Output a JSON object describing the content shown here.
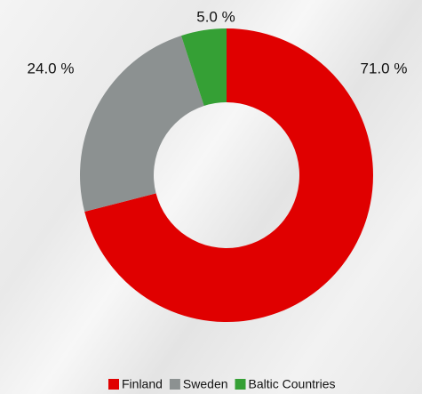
{
  "chart_data": {
    "type": "donut",
    "categories": [
      "Finland",
      "Sweden",
      "Baltic Countries"
    ],
    "values": [
      71,
      24,
      5
    ],
    "value_labels": [
      "71.0 %",
      "24.0 %",
      "5.0 %"
    ],
    "colors": [
      "#e00000",
      "#8c9191",
      "#35a035"
    ],
    "legend": "bottom"
  }
}
